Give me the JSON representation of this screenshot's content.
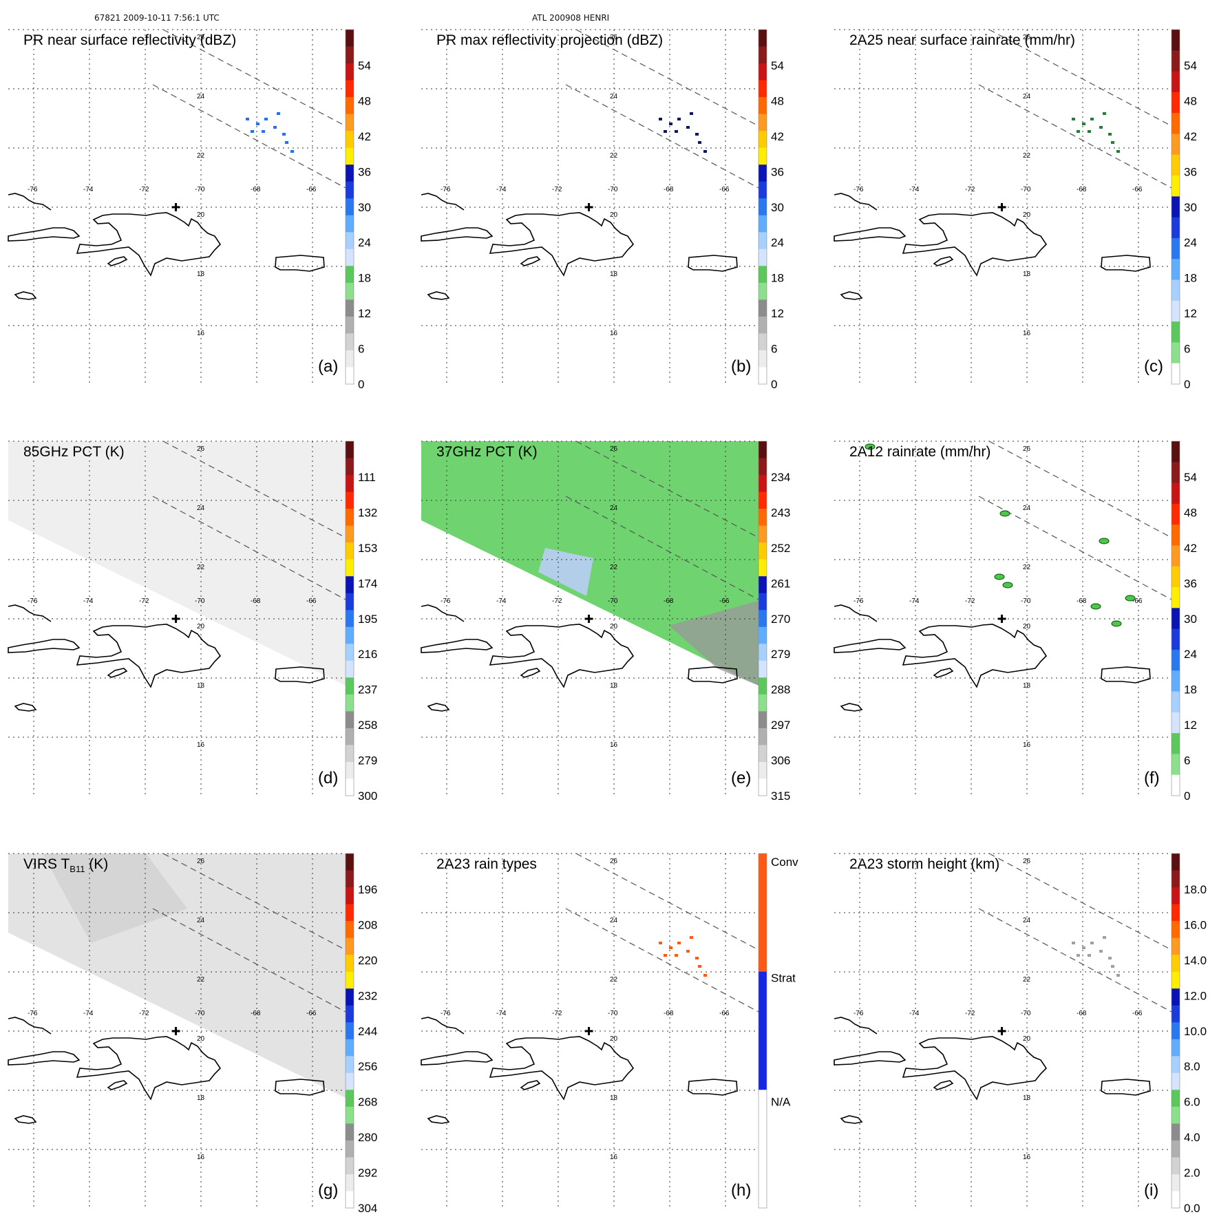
{
  "header": {
    "orbit_time": "67821 2009-10-11 7:56:1 UTC",
    "storm": "ATL 200908 HENRI"
  },
  "map": {
    "lon_ticks": [
      "-76",
      "-74",
      "-72",
      "-70",
      "-68",
      "-66"
    ],
    "lat_ticks": [
      "26",
      "24",
      "22",
      "20",
      "18",
      "16"
    ],
    "storm_center": {
      "lon": -70.9,
      "lat": 20.0
    }
  },
  "colors": {
    "panel_bg_lightgray": "#eeeeee",
    "pct37_green": "#7fd07f",
    "coast": "#000000",
    "grid": "#333333"
  },
  "chart_data": [
    {
      "type": "heatmap",
      "panel": "(a)",
      "title": "PR near surface reflectivity (dBZ)",
      "colorbar": {
        "ticks": [
          "54",
          "48",
          "42",
          "36",
          "30",
          "24",
          "18",
          "12",
          "6",
          "0"
        ],
        "colors": [
          "#5a1010",
          "#8c1a1a",
          "#c81414",
          "#ff2a00",
          "#ff6a00",
          "#ff9a20",
          "#ffcc00",
          "#ffee00",
          "#0a14b4",
          "#1a3cdc",
          "#2a78f0",
          "#60acff",
          "#a8d0ff",
          "#d4e4ff",
          "#5ac85a",
          "#8ce08c",
          "#8c8c8c",
          "#b0b0b0",
          "#d2d2d2",
          "#ececec",
          "#ffffff"
        ]
      }
    },
    {
      "type": "heatmap",
      "panel": "(b)",
      "title": "PR max reflectivity projection (dBZ)",
      "colorbar": {
        "ticks": [
          "54",
          "48",
          "42",
          "36",
          "30",
          "24",
          "18",
          "12",
          "6",
          "0"
        ],
        "colors": [
          "#5a1010",
          "#8c1a1a",
          "#c81414",
          "#ff2a00",
          "#ff6a00",
          "#ff9a20",
          "#ffcc00",
          "#ffee00",
          "#0a14b4",
          "#1a3cdc",
          "#2a78f0",
          "#60acff",
          "#a8d0ff",
          "#d4e4ff",
          "#5ac85a",
          "#8ce08c",
          "#8c8c8c",
          "#b0b0b0",
          "#d2d2d2",
          "#ececec",
          "#ffffff"
        ]
      }
    },
    {
      "type": "heatmap",
      "panel": "(c)",
      "title": "2A25 near surface rainrate (mm/hr)",
      "colorbar": {
        "ticks": [
          "54",
          "48",
          "42",
          "36",
          "30",
          "24",
          "18",
          "12",
          "6",
          "0"
        ],
        "colors": [
          "#5a1010",
          "#8c1a1a",
          "#c81414",
          "#ff2a00",
          "#ff6a00",
          "#ff9a20",
          "#ffcc00",
          "#ffee00",
          "#0a14b4",
          "#1a3cdc",
          "#2a78f0",
          "#60acff",
          "#a8d0ff",
          "#d4e4ff",
          "#5ac85a",
          "#8ce08c",
          "#ffffff"
        ]
      }
    },
    {
      "type": "heatmap",
      "panel": "(d)",
      "title": "85GHz PCT (K)",
      "colorbar": {
        "ticks": [
          "111",
          "132",
          "153",
          "174",
          "195",
          "216",
          "237",
          "258",
          "279",
          "300"
        ],
        "colors": [
          "#5a1010",
          "#8c1a1a",
          "#c81414",
          "#ff2a00",
          "#ff6a00",
          "#ff9a20",
          "#ffcc00",
          "#ffee00",
          "#0a14b4",
          "#1a3cdc",
          "#2a78f0",
          "#60acff",
          "#a8d0ff",
          "#d4e4ff",
          "#5ac85a",
          "#8ce08c",
          "#8c8c8c",
          "#b0b0b0",
          "#d2d2d2",
          "#ececec",
          "#ffffff"
        ]
      }
    },
    {
      "type": "heatmap",
      "panel": "(e)",
      "title": "37GHz PCT (K)",
      "colorbar": {
        "ticks": [
          "234",
          "243",
          "252",
          "261",
          "270",
          "279",
          "288",
          "297",
          "306",
          "315"
        ],
        "colors": [
          "#5a1010",
          "#8c1a1a",
          "#c81414",
          "#ff2a00",
          "#ff6a00",
          "#ff9a20",
          "#ffcc00",
          "#ffee00",
          "#0a14b4",
          "#1a3cdc",
          "#2a78f0",
          "#60acff",
          "#a8d0ff",
          "#d4e4ff",
          "#5ac85a",
          "#8ce08c",
          "#8c8c8c",
          "#b0b0b0",
          "#d2d2d2",
          "#ececec",
          "#ffffff"
        ]
      }
    },
    {
      "type": "heatmap",
      "panel": "(f)",
      "title": "2A12 rainrate (mm/hr)",
      "colorbar": {
        "ticks": [
          "54",
          "48",
          "42",
          "36",
          "30",
          "24",
          "18",
          "12",
          "6",
          "0"
        ],
        "colors": [
          "#5a1010",
          "#8c1a1a",
          "#c81414",
          "#ff2a00",
          "#ff6a00",
          "#ff9a20",
          "#ffcc00",
          "#ffee00",
          "#0a14b4",
          "#1a3cdc",
          "#2a78f0",
          "#60acff",
          "#a8d0ff",
          "#d4e4ff",
          "#5ac85a",
          "#8ce08c",
          "#ffffff"
        ]
      }
    },
    {
      "type": "heatmap",
      "panel": "(g)",
      "title_main": "VIRS T",
      "title_sub": "B11",
      "title_unit": " (K)",
      "colorbar": {
        "ticks": [
          "196",
          "208",
          "220",
          "232",
          "244",
          "256",
          "268",
          "280",
          "292",
          "304"
        ],
        "colors": [
          "#5a1010",
          "#8c1a1a",
          "#c81414",
          "#ff2a00",
          "#ff6a00",
          "#ff9a20",
          "#ffcc00",
          "#ffee00",
          "#0a14b4",
          "#1a3cdc",
          "#2a78f0",
          "#60acff",
          "#a8d0ff",
          "#d4e4ff",
          "#5ac85a",
          "#8ce08c",
          "#8c8c8c",
          "#b0b0b0",
          "#d2d2d2",
          "#ececec",
          "#ffffff"
        ]
      }
    },
    {
      "type": "heatmap",
      "panel": "(h)",
      "title": "2A23 rain types",
      "colorbar": {
        "ticks": [
          "Conv",
          "Strat",
          "N/A"
        ],
        "colors": [
          "#ff5a14",
          "#1428e6",
          "#ffffff"
        ]
      }
    },
    {
      "type": "heatmap",
      "panel": "(i)",
      "title": "2A23 storm height (km)",
      "colorbar": {
        "ticks": [
          "18.0",
          "16.0",
          "14.0",
          "12.0",
          "10.0",
          "8.0",
          "6.0",
          "4.0",
          "2.0",
          "0.0"
        ],
        "colors": [
          "#5a1010",
          "#8c1a1a",
          "#c81414",
          "#ff2a00",
          "#ff6a00",
          "#ff9a20",
          "#ffcc00",
          "#ffee00",
          "#0a14b4",
          "#1a3cdc",
          "#2a78f0",
          "#60acff",
          "#a8d0ff",
          "#d4e4ff",
          "#5ac85a",
          "#8ce08c",
          "#8c8c8c",
          "#b0b0b0",
          "#d2d2d2",
          "#ececec",
          "#ffffff"
        ]
      }
    }
  ]
}
